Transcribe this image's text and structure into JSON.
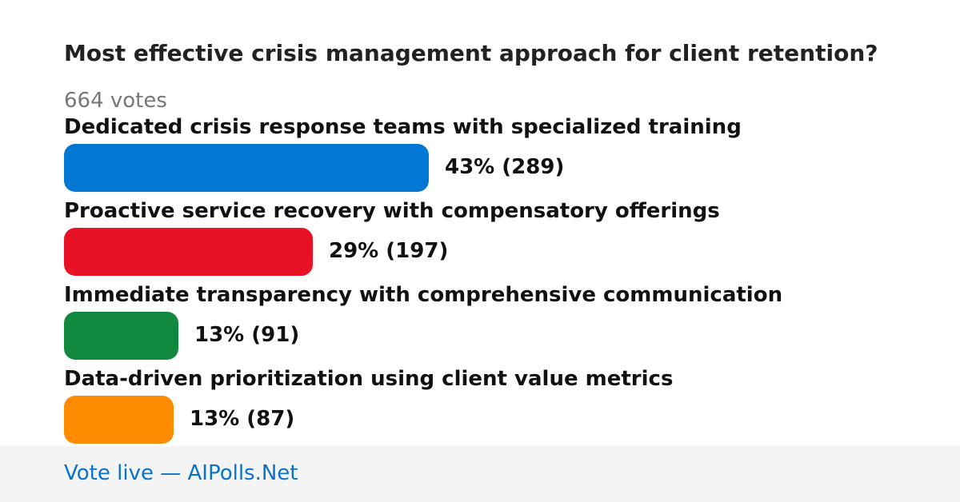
{
  "poll": {
    "title": "Most effective crisis management approach for client retention?",
    "votes_label": "664 votes"
  },
  "chart_data": {
    "type": "bar",
    "orientation": "horizontal",
    "title": "Most effective crisis management approach for client retention?",
    "total_votes": 664,
    "categories": [
      "Dedicated crisis response teams with specialized training",
      "Proactive service recovery with compensatory offerings",
      "Immediate transparency with comprehensive communication",
      "Data-driven prioritization using client value metrics"
    ],
    "values": [
      289,
      197,
      91,
      87
    ],
    "percent": [
      43,
      29,
      13,
      13
    ],
    "value_labels": [
      "43% (289)",
      "29% (197)",
      "13% (91)",
      "13% (87)"
    ],
    "colors": [
      "#0277d4",
      "#e81224",
      "#10893e",
      "#ff8c00"
    ]
  },
  "footer": {
    "link_text": "Vote live — AIPolls.Net"
  }
}
